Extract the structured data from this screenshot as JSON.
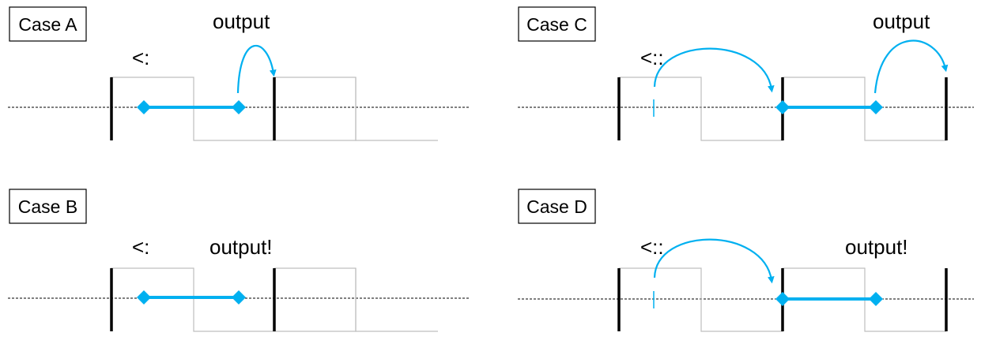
{
  "colors": {
    "accent": "#00B0F0",
    "signal": "#bfbfbf",
    "line": "#000000",
    "background": "#ffffff"
  },
  "panels": [
    {
      "id": "a",
      "label": "Case A",
      "operator": "<:",
      "output": "output",
      "output_arrow": true,
      "input_arrow": false
    },
    {
      "id": "c",
      "label": "Case C",
      "operator": "<::",
      "output": "output",
      "output_arrow": true,
      "input_arrow": true
    },
    {
      "id": "b",
      "label": "Case B",
      "operator": "<:",
      "output": "output!",
      "output_arrow": false,
      "input_arrow": false
    },
    {
      "id": "d",
      "label": "Case D",
      "operator": "<::",
      "output": "output!",
      "output_arrow": false,
      "input_arrow": true
    }
  ]
}
